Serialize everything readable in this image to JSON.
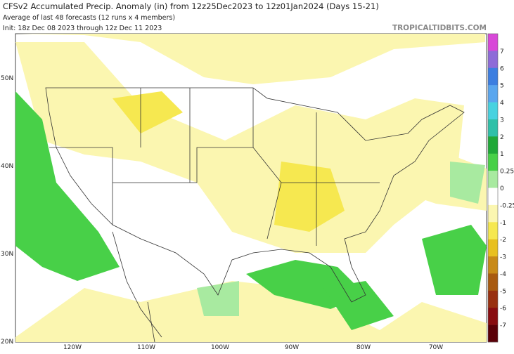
{
  "header": {
    "title": "CFSv2 Accumulated Precip. Anomaly (in) from 12z25Dec2023 to 12z01Jan2024 (Days 15-21)",
    "subtitle": "Average of last 48 forecasts (12 runs x 4 members)",
    "init": "Init: 18z Dec 08 2023 through 12z Dec 11 2023",
    "watermark": "TROPICALTIDBITS.COM"
  },
  "map": {
    "lat_labels": [
      "50N",
      "40N",
      "30N",
      "20N"
    ],
    "lon_labels": [
      "120W",
      "110W",
      "100W",
      "90W",
      "80W",
      "70W"
    ]
  },
  "colorbar": {
    "labels": [
      "7",
      "6",
      "5",
      "4",
      "3",
      "2",
      "1",
      "0.25",
      "0",
      "-0.25",
      "-1",
      "-2",
      "-3",
      "-4",
      "-5",
      "-6",
      "-7"
    ],
    "colors": [
      "#d848d8",
      "#8e6bd8",
      "#3d7ee0",
      "#5aa6ee",
      "#48d2e0",
      "#2fc0a8",
      "#20a838",
      "#48d048",
      "#a8eaa0",
      "#ffffff",
      "#fbf6b0",
      "#f6e850",
      "#e8c020",
      "#c88a18",
      "#a85a10",
      "#983010",
      "#880c10",
      "#5a0008"
    ]
  }
}
